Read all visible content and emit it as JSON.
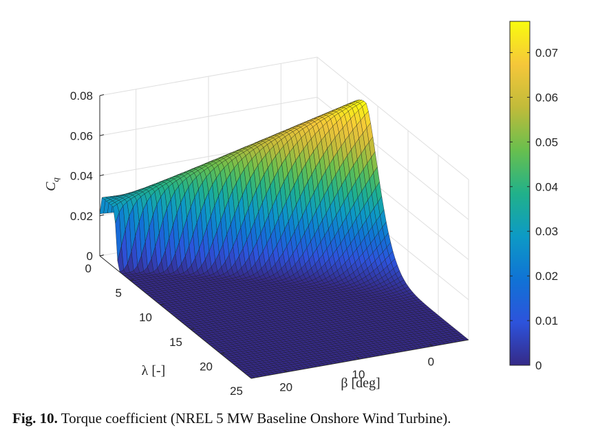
{
  "caption": {
    "label": "Fig. 10.",
    "text": " Torque coefficient (NREL 5 MW Baseline Onshore Wind Turbine)."
  },
  "chart_data": {
    "type": "surface",
    "colormap": "parula",
    "title": "",
    "xlabel": "λ [-]",
    "ylabel": "β [deg]",
    "zlabel": "C_q",
    "lambda_range": [
      0,
      25
    ],
    "beta_range": [
      -5,
      25
    ],
    "zlim": [
      0,
      0.08
    ],
    "lambda_ticks": [
      "0",
      "5",
      "10",
      "15",
      "20",
      "25"
    ],
    "beta_ticks": [
      "0",
      "10",
      "20"
    ],
    "z_ticks": [
      "0",
      "0.02",
      "0.04",
      "0.06",
      "0.08"
    ],
    "colorbar_ticks": [
      "0",
      "0.01",
      "0.02",
      "0.03",
      "0.04",
      "0.05",
      "0.06",
      "0.07"
    ],
    "colorbar_range": [
      0,
      0.077
    ],
    "grid": true,
    "peak": {
      "lambda": 8,
      "beta": -2,
      "cq": 0.077
    },
    "estimated_edge_values": {
      "beta_-5_vs_lambda": {
        "lambda": [
          0,
          2,
          5,
          8,
          11,
          13,
          15
        ],
        "cq": [
          0.018,
          0.035,
          0.06,
          0.077,
          0.04,
          0.01,
          0
        ]
      },
      "lambda_1_vs_beta": {
        "beta": [
          -5,
          0,
          10,
          20,
          25
        ],
        "cq": [
          0.018,
          0.024,
          0.028,
          0.03,
          0.03
        ]
      }
    }
  }
}
